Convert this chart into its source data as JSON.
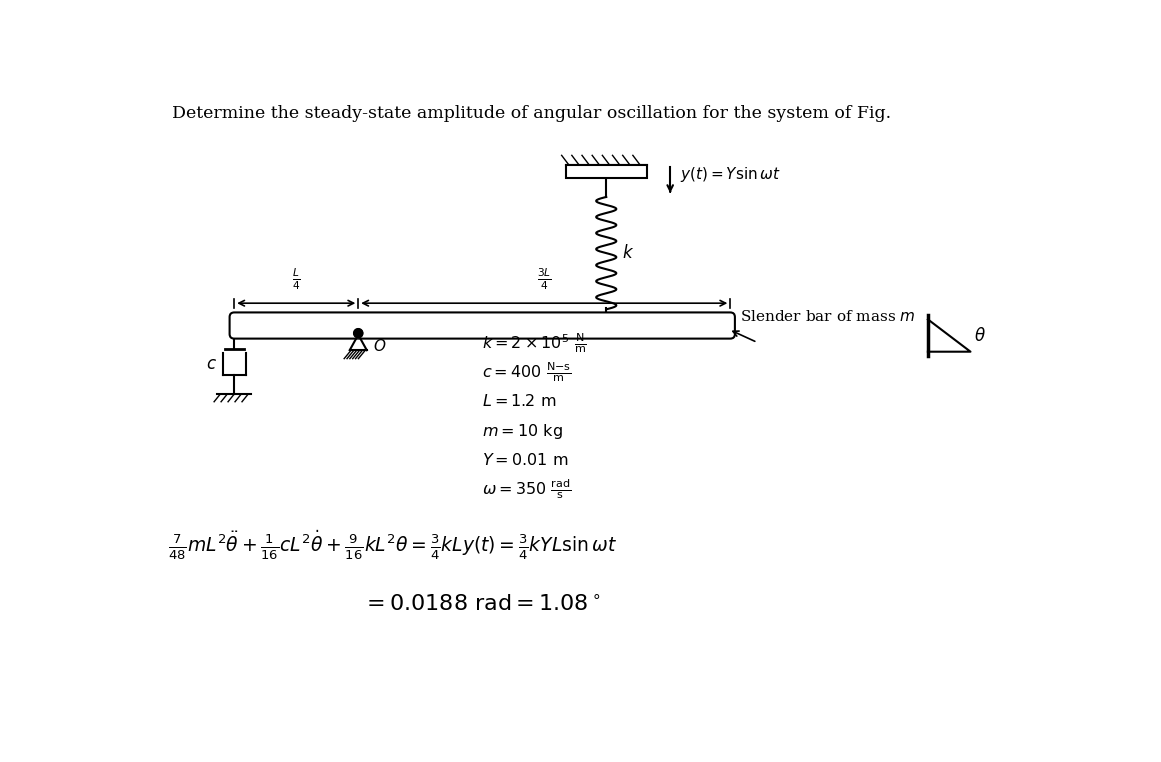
{
  "title": "Determine the steady-state amplitude of angular oscillation for the system of Fig.",
  "title_fontsize": 12.5,
  "bg_color": "#ffffff",
  "text_color": "#000000",
  "eq1": "$\\frac{7}{48}mL^2\\ddot{\\theta} + \\frac{1}{16}cL^2\\dot{\\theta} + \\frac{9}{16}kL^2\\theta = \\frac{3}{4}kLy(t) = \\frac{3}{4}kYL\\sin\\omega t$",
  "eq2": "$= 0.0188\\ \\mathrm{rad} = 1.08^\\circ$",
  "param_k": "$k = 2 \\times 10^5\\ \\frac{\\mathrm{N}}{\\mathrm{m}}$",
  "param_c": "$c = 400\\ \\frac{\\mathrm{N{-}s}}{\\mathrm{m}}$",
  "param_L": "$L = 1.2\\ \\mathrm{m}$",
  "param_m": "$m = 10\\ \\mathrm{kg}$",
  "param_Y": "$Y = 0.01\\ \\mathrm{m}$",
  "param_omega": "$\\omega = 350\\ \\frac{\\mathrm{rad}}{\\mathrm{s}}$",
  "label_slender": "Slender bar of mass $m$",
  "label_yt": "$y(t) = Y \\sin \\omega t$",
  "label_k": "$k$",
  "label_c": "$c$",
  "label_O": "$O$",
  "label_L4": "$\\frac{L}{4}$",
  "label_3L4": "$\\frac{3L}{4}$",
  "label_theta": "$\\theta$"
}
